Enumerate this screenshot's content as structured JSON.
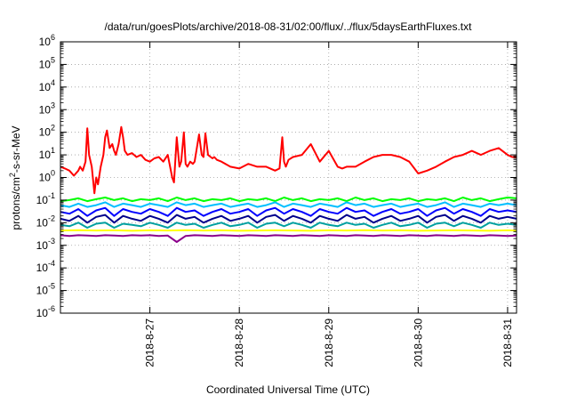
{
  "chart_data": {
    "type": "line",
    "title": "/data/run/goesPlots/archive/2018-08-31/02:00/flux/../flux/5daysEarthFluxes.txt",
    "xlabel": "Coordinated Universal Time (UTC)",
    "ylabel": {
      "base": "protons/cm",
      "sup": "2",
      "rest": "-s-sr-MeV"
    },
    "yscale": "log",
    "ylim": [
      1e-06,
      1000000.0
    ],
    "xlim": [
      0.0,
      5.1
    ],
    "grid": "dotted",
    "legend": "none",
    "x_ticks": [
      {
        "x": 1,
        "label": "2018-8-27"
      },
      {
        "x": 2,
        "label": "2018-8-28"
      },
      {
        "x": 3,
        "label": "2018-8-29"
      },
      {
        "x": 4,
        "label": "2018-8-30"
      },
      {
        "x": 5,
        "label": "2018-8-31"
      }
    ],
    "y_ticks": [
      {
        "exp": -6
      },
      {
        "exp": -5
      },
      {
        "exp": -4
      },
      {
        "exp": -3
      },
      {
        "exp": -2
      },
      {
        "exp": -1
      },
      {
        "exp": 0
      },
      {
        "exp": 1
      },
      {
        "exp": 2
      },
      {
        "exp": 3
      },
      {
        "exp": 4
      },
      {
        "exp": 5
      },
      {
        "exp": 6
      }
    ],
    "series": [
      {
        "color": "#ff0000",
        "x": [
          0.0,
          0.05,
          0.1,
          0.15,
          0.2,
          0.22,
          0.25,
          0.28,
          0.3,
          0.32,
          0.35,
          0.38,
          0.4,
          0.42,
          0.45,
          0.48,
          0.5,
          0.52,
          0.55,
          0.58,
          0.6,
          0.62,
          0.65,
          0.68,
          0.7,
          0.72,
          0.75,
          0.8,
          0.85,
          0.9,
          0.95,
          1.0,
          1.05,
          1.1,
          1.15,
          1.2,
          1.25,
          1.27,
          1.3,
          1.33,
          1.35,
          1.38,
          1.4,
          1.42,
          1.45,
          1.48,
          1.5,
          1.55,
          1.58,
          1.6,
          1.62,
          1.65,
          1.68,
          1.7,
          1.72,
          1.75,
          1.8,
          1.9,
          2.0,
          2.1,
          2.2,
          2.3,
          2.4,
          2.45,
          2.48,
          2.5,
          2.52,
          2.55,
          2.6,
          2.7,
          2.8,
          2.9,
          3.0,
          3.1,
          3.15,
          3.2,
          3.3,
          3.4,
          3.5,
          3.6,
          3.7,
          3.8,
          3.9,
          4.0,
          4.1,
          4.2,
          4.3,
          4.4,
          4.5,
          4.6,
          4.7,
          4.8,
          4.9,
          5.0,
          5.05,
          5.1
        ],
        "y": [
          3.0,
          2.5,
          2.0,
          1.2,
          2.0,
          3.0,
          2.0,
          5.0,
          150,
          10,
          3.0,
          0.2,
          1.0,
          0.5,
          3.0,
          10,
          60,
          120,
          20,
          30,
          15,
          10,
          30,
          170,
          60,
          15,
          10,
          12,
          8,
          10,
          6.0,
          5.0,
          7.0,
          8.0,
          5.0,
          10,
          1.0,
          0.6,
          60,
          3.0,
          5.0,
          100,
          4.0,
          3.0,
          5.0,
          4.0,
          5.0,
          80,
          10,
          8.0,
          90,
          10,
          8.0,
          7.0,
          8.0,
          6.0,
          5.0,
          3.0,
          2.5,
          4.0,
          3.0,
          3.0,
          2.0,
          2.5,
          60,
          5.0,
          3.0,
          6.0,
          8.0,
          10,
          30,
          5.0,
          15,
          3.0,
          2.5,
          3.0,
          3.0,
          5.0,
          8.0,
          10,
          10,
          8.0,
          5.0,
          1.5,
          2.0,
          3.0,
          5.0,
          8.0,
          10,
          15,
          10,
          15,
          20,
          10,
          8.0,
          8.0
        ]
      },
      {
        "color": "#00ff00",
        "x": [
          0.0,
          0.1,
          0.2,
          0.3,
          0.4,
          0.5,
          0.6,
          0.7,
          0.8,
          0.9,
          1.0,
          1.1,
          1.2,
          1.3,
          1.4,
          1.5,
          1.6,
          1.7,
          1.8,
          1.9,
          2.0,
          2.1,
          2.2,
          2.3,
          2.4,
          2.5,
          2.6,
          2.7,
          2.8,
          2.9,
          3.0,
          3.1,
          3.2,
          3.3,
          3.4,
          3.5,
          3.6,
          3.7,
          3.8,
          3.9,
          4.0,
          4.1,
          4.2,
          4.3,
          4.4,
          4.5,
          4.6,
          4.7,
          4.8,
          4.9,
          5.0,
          5.1
        ],
        "y": [
          0.09,
          0.1,
          0.12,
          0.09,
          0.11,
          0.13,
          0.1,
          0.12,
          0.09,
          0.11,
          0.1,
          0.12,
          0.09,
          0.13,
          0.1,
          0.12,
          0.09,
          0.11,
          0.1,
          0.12,
          0.09,
          0.11,
          0.1,
          0.12,
          0.09,
          0.13,
          0.1,
          0.12,
          0.09,
          0.11,
          0.1,
          0.12,
          0.09,
          0.13,
          0.1,
          0.12,
          0.09,
          0.11,
          0.1,
          0.12,
          0.09,
          0.11,
          0.1,
          0.12,
          0.09,
          0.13,
          0.1,
          0.12,
          0.09,
          0.11,
          0.13,
          0.12
        ]
      },
      {
        "color": "#00bfff",
        "x": [
          0.0,
          0.1,
          0.2,
          0.3,
          0.4,
          0.5,
          0.6,
          0.7,
          0.8,
          0.9,
          1.0,
          1.1,
          1.2,
          1.3,
          1.4,
          1.5,
          1.6,
          1.7,
          1.8,
          1.9,
          2.0,
          2.1,
          2.2,
          2.3,
          2.4,
          2.5,
          2.6,
          2.7,
          2.8,
          2.9,
          3.0,
          3.1,
          3.2,
          3.3,
          3.4,
          3.5,
          3.6,
          3.7,
          3.8,
          3.9,
          4.0,
          4.1,
          4.2,
          4.3,
          4.4,
          4.5,
          4.6,
          4.7,
          4.8,
          4.9,
          5.0,
          5.1
        ],
        "y": [
          0.06,
          0.05,
          0.07,
          0.05,
          0.06,
          0.08,
          0.05,
          0.07,
          0.06,
          0.05,
          0.07,
          0.06,
          0.05,
          0.08,
          0.06,
          0.07,
          0.05,
          0.06,
          0.07,
          0.05,
          0.06,
          0.07,
          0.05,
          0.06,
          0.08,
          0.05,
          0.07,
          0.06,
          0.05,
          0.07,
          0.06,
          0.05,
          0.08,
          0.06,
          0.07,
          0.05,
          0.06,
          0.07,
          0.05,
          0.06,
          0.07,
          0.05,
          0.06,
          0.08,
          0.05,
          0.07,
          0.06,
          0.05,
          0.07,
          0.06,
          0.07,
          0.06
        ]
      },
      {
        "color": "#0000ff",
        "x": [
          0.0,
          0.1,
          0.2,
          0.3,
          0.4,
          0.5,
          0.6,
          0.7,
          0.8,
          0.9,
          1.0,
          1.1,
          1.2,
          1.3,
          1.4,
          1.5,
          1.6,
          1.7,
          1.8,
          1.9,
          2.0,
          2.1,
          2.2,
          2.3,
          2.4,
          2.5,
          2.6,
          2.7,
          2.8,
          2.9,
          3.0,
          3.1,
          3.2,
          3.3,
          3.4,
          3.5,
          3.6,
          3.7,
          3.8,
          3.9,
          4.0,
          4.1,
          4.2,
          4.3,
          4.4,
          4.5,
          4.6,
          4.7,
          4.8,
          4.9,
          5.0,
          5.1
        ],
        "y": [
          0.03,
          0.025,
          0.04,
          0.02,
          0.035,
          0.045,
          0.02,
          0.04,
          0.03,
          0.025,
          0.04,
          0.03,
          0.02,
          0.045,
          0.03,
          0.035,
          0.02,
          0.03,
          0.04,
          0.025,
          0.03,
          0.04,
          0.02,
          0.035,
          0.045,
          0.025,
          0.04,
          0.03,
          0.02,
          0.04,
          0.03,
          0.025,
          0.045,
          0.03,
          0.035,
          0.02,
          0.03,
          0.04,
          0.025,
          0.03,
          0.04,
          0.02,
          0.035,
          0.045,
          0.025,
          0.04,
          0.03,
          0.02,
          0.04,
          0.03,
          0.035,
          0.03
        ]
      },
      {
        "color": "#00008b",
        "x": [
          0.0,
          0.1,
          0.2,
          0.3,
          0.4,
          0.5,
          0.6,
          0.7,
          0.8,
          0.9,
          1.0,
          1.1,
          1.2,
          1.3,
          1.4,
          1.5,
          1.6,
          1.7,
          1.8,
          1.9,
          2.0,
          2.1,
          2.2,
          2.3,
          2.4,
          2.5,
          2.6,
          2.7,
          2.8,
          2.9,
          3.0,
          3.1,
          3.2,
          3.3,
          3.4,
          3.5,
          3.6,
          3.7,
          3.8,
          3.9,
          4.0,
          4.1,
          4.2,
          4.3,
          4.4,
          4.5,
          4.6,
          4.7,
          4.8,
          4.9,
          5.0,
          5.1
        ],
        "y": [
          0.015,
          0.012,
          0.02,
          0.01,
          0.018,
          0.022,
          0.01,
          0.02,
          0.015,
          0.012,
          0.02,
          0.015,
          0.01,
          0.022,
          0.015,
          0.018,
          0.01,
          0.015,
          0.02,
          0.012,
          0.015,
          0.02,
          0.01,
          0.018,
          0.022,
          0.012,
          0.02,
          0.015,
          0.01,
          0.02,
          0.015,
          0.012,
          0.022,
          0.015,
          0.018,
          0.01,
          0.015,
          0.02,
          0.012,
          0.015,
          0.02,
          0.01,
          0.018,
          0.022,
          0.012,
          0.02,
          0.015,
          0.01,
          0.02,
          0.015,
          0.018,
          0.015
        ]
      },
      {
        "color": "#00a0a0",
        "x": [
          0.0,
          0.1,
          0.2,
          0.3,
          0.4,
          0.5,
          0.6,
          0.7,
          0.8,
          0.9,
          1.0,
          1.1,
          1.2,
          1.3,
          1.4,
          1.5,
          1.6,
          1.7,
          1.8,
          1.9,
          2.0,
          2.1,
          2.2,
          2.3,
          2.4,
          2.5,
          2.6,
          2.7,
          2.8,
          2.9,
          3.0,
          3.1,
          3.2,
          3.3,
          3.4,
          3.5,
          3.6,
          3.7,
          3.8,
          3.9,
          4.0,
          4.1,
          4.2,
          4.3,
          4.4,
          4.5,
          4.6,
          4.7,
          4.8,
          4.9,
          5.0,
          5.1
        ],
        "y": [
          0.008,
          0.007,
          0.01,
          0.006,
          0.009,
          0.01,
          0.006,
          0.009,
          0.008,
          0.007,
          0.01,
          0.008,
          0.006,
          0.01,
          0.008,
          0.009,
          0.006,
          0.008,
          0.01,
          0.007,
          0.008,
          0.01,
          0.006,
          0.009,
          0.01,
          0.007,
          0.01,
          0.008,
          0.006,
          0.01,
          0.008,
          0.007,
          0.01,
          0.008,
          0.009,
          0.006,
          0.008,
          0.01,
          0.007,
          0.008,
          0.01,
          0.006,
          0.009,
          0.01,
          0.007,
          0.01,
          0.008,
          0.006,
          0.01,
          0.008,
          0.009,
          0.008
        ]
      },
      {
        "color": "#ffff00",
        "x": [
          0.0,
          0.2,
          0.4,
          0.6,
          0.8,
          1.0,
          1.2,
          1.4,
          1.6,
          1.8,
          2.0,
          2.2,
          2.4,
          2.6,
          2.8,
          3.0,
          3.2,
          3.4,
          3.6,
          3.8,
          4.0,
          4.2,
          4.4,
          4.6,
          4.8,
          5.0,
          5.1
        ],
        "y": [
          0.0045,
          0.0047,
          0.0045,
          0.0046,
          0.0044,
          0.0046,
          0.0045,
          0.0047,
          0.0045,
          0.0046,
          0.0044,
          0.0045,
          0.0046,
          0.0045,
          0.0044,
          0.0046,
          0.0045,
          0.0047,
          0.0045,
          0.0046,
          0.0044,
          0.0045,
          0.0046,
          0.0045,
          0.0044,
          0.0046,
          0.0045
        ]
      },
      {
        "color": "#8b008b",
        "x": [
          0.0,
          0.1,
          0.2,
          0.3,
          0.4,
          0.5,
          0.6,
          0.7,
          0.8,
          0.9,
          1.0,
          1.1,
          1.2,
          1.3,
          1.4,
          1.5,
          1.6,
          1.7,
          1.8,
          1.9,
          2.0,
          2.1,
          2.2,
          2.3,
          2.4,
          2.5,
          2.6,
          2.7,
          2.8,
          2.9,
          3.0,
          3.1,
          3.2,
          3.3,
          3.4,
          3.5,
          3.6,
          3.7,
          3.8,
          3.9,
          4.0,
          4.1,
          4.2,
          4.3,
          4.4,
          4.5,
          4.6,
          4.7,
          4.8,
          4.9,
          5.0,
          5.1
        ],
        "y": [
          0.0028,
          0.0026,
          0.0028,
          0.0027,
          0.0026,
          0.0028,
          0.0027,
          0.0026,
          0.0028,
          0.0027,
          0.0028,
          0.0026,
          0.0027,
          0.0014,
          0.0026,
          0.0028,
          0.0027,
          0.0026,
          0.0028,
          0.0027,
          0.0026,
          0.0028,
          0.0027,
          0.0026,
          0.0028,
          0.0027,
          0.0026,
          0.0028,
          0.0027,
          0.0026,
          0.0028,
          0.0027,
          0.0026,
          0.0028,
          0.0027,
          0.0026,
          0.0028,
          0.0027,
          0.0026,
          0.0028,
          0.0027,
          0.0026,
          0.0028,
          0.0027,
          0.0026,
          0.0028,
          0.0027,
          0.0026,
          0.0028,
          0.0027,
          0.0026,
          0.0027
        ]
      }
    ]
  }
}
